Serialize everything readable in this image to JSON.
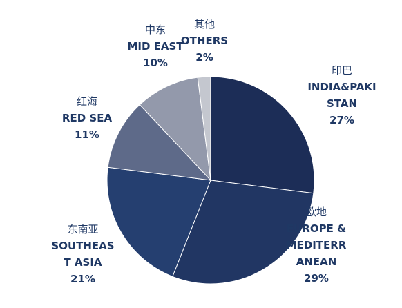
{
  "chart_data": {
    "type": "pie",
    "labels_zh": [
      "印巴",
      "欧地",
      "东南亚",
      "红海",
      "中东",
      "其他"
    ],
    "categories": [
      "INDIA&PAKISTAN",
      "EUROPE & MEDITERRANEAN",
      "SOUTHEAST ASIA",
      "RED SEA",
      "MID EAST",
      "OTHERS"
    ],
    "values": [
      27,
      29,
      21,
      11,
      10,
      2
    ],
    "value_labels": [
      "27%",
      "29%",
      "21%",
      "11%",
      "10%",
      "2%"
    ],
    "colors": [
      "#1c2d57",
      "#213663",
      "#253f70",
      "#5e6a89",
      "#9399ab",
      "#c4c7cf"
    ]
  }
}
